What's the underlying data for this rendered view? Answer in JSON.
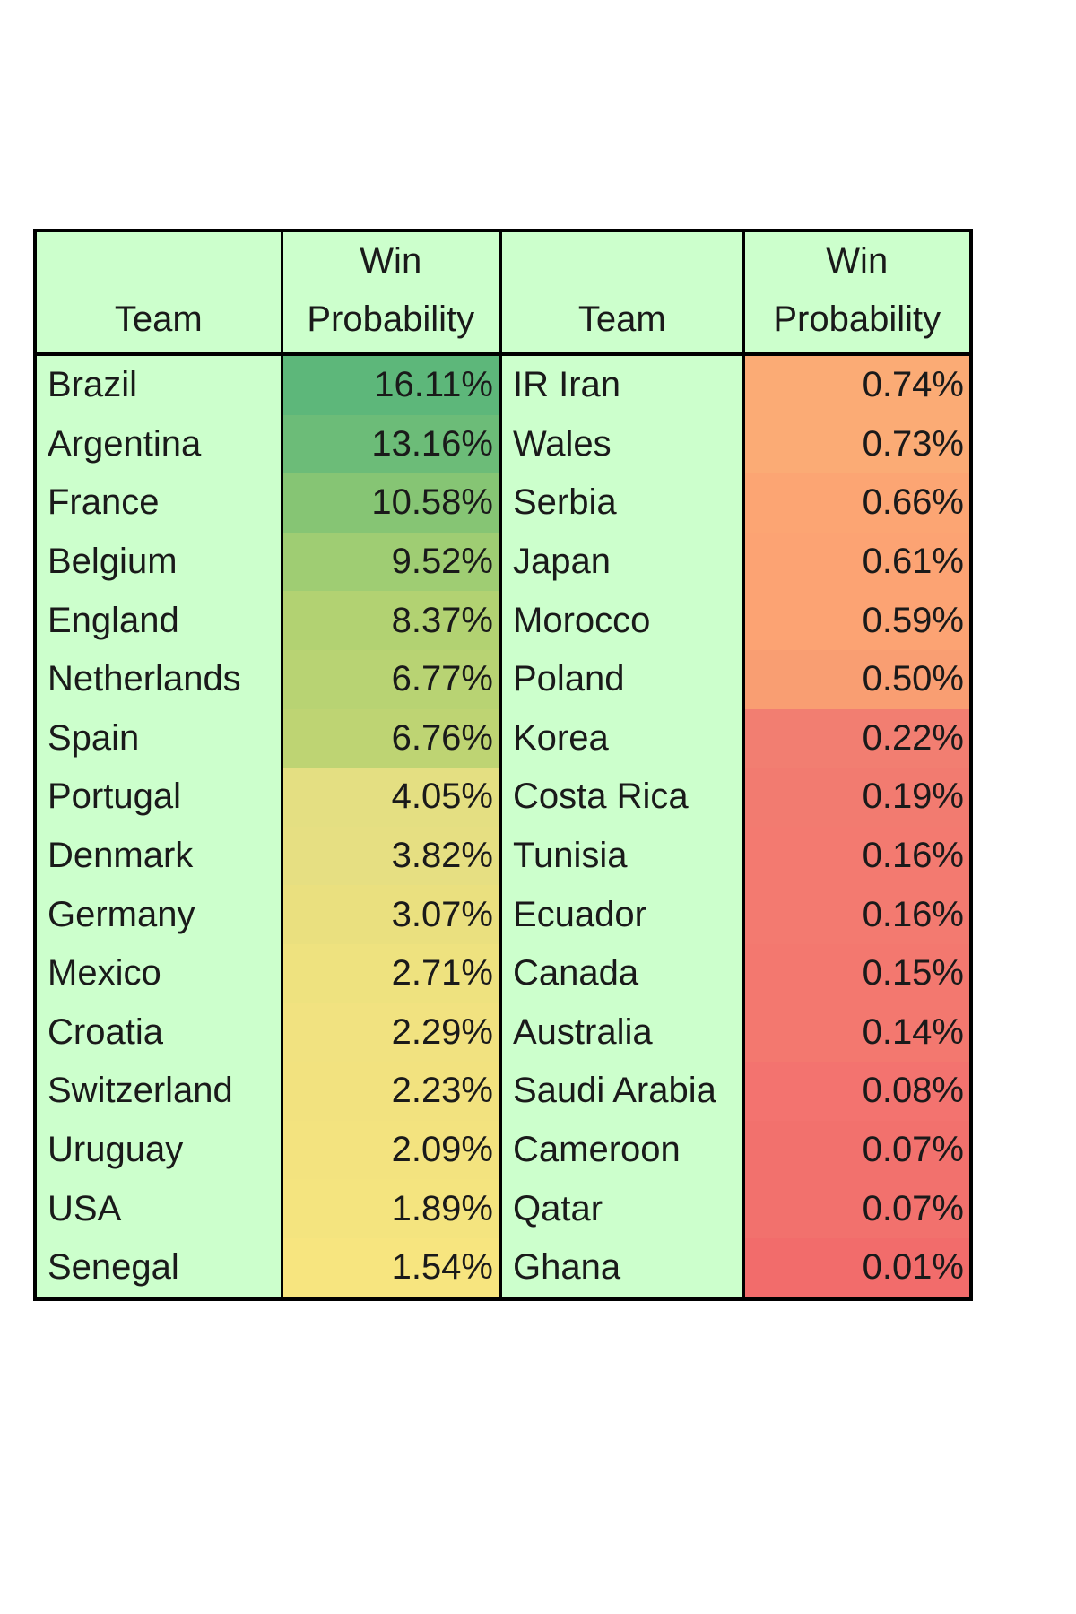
{
  "chart_data": {
    "type": "table",
    "columns": [
      "Team",
      "Win Probability",
      "Team",
      "Win Probability"
    ],
    "header": {
      "col1": "Team",
      "col2_line1": "Win",
      "col2_line2": "Probability",
      "col3": "Team",
      "col4_line1": "Win",
      "col4_line2": "Probability"
    },
    "rows": [
      {
        "team_a": "Brazil",
        "prob_a": "16.11%",
        "team_b": "IR Iran",
        "prob_b": "0.74%"
      },
      {
        "team_a": "Argentina",
        "prob_a": "13.16%",
        "team_b": "Wales",
        "prob_b": "0.73%"
      },
      {
        "team_a": "France",
        "prob_a": "10.58%",
        "team_b": "Serbia",
        "prob_b": "0.66%"
      },
      {
        "team_a": "Belgium",
        "prob_a": "9.52%",
        "team_b": "Japan",
        "prob_b": "0.61%"
      },
      {
        "team_a": "England",
        "prob_a": "8.37%",
        "team_b": "Morocco",
        "prob_b": "0.59%"
      },
      {
        "team_a": "Netherlands",
        "prob_a": "6.77%",
        "team_b": "Poland",
        "prob_b": "0.50%"
      },
      {
        "team_a": "Spain",
        "prob_a": "6.76%",
        "team_b": "Korea",
        "prob_b": "0.22%"
      },
      {
        "team_a": "Portugal",
        "prob_a": "4.05%",
        "team_b": "Costa Rica",
        "prob_b": "0.19%"
      },
      {
        "team_a": "Denmark",
        "prob_a": "3.82%",
        "team_b": "Tunisia",
        "prob_b": "0.16%"
      },
      {
        "team_a": "Germany",
        "prob_a": "3.07%",
        "team_b": "Ecuador",
        "prob_b": "0.16%"
      },
      {
        "team_a": "Mexico",
        "prob_a": "2.71%",
        "team_b": "Canada",
        "prob_b": "0.15%"
      },
      {
        "team_a": "Croatia",
        "prob_a": "2.29%",
        "team_b": "Australia",
        "prob_b": "0.14%"
      },
      {
        "team_a": "Switzerland",
        "prob_a": "2.23%",
        "team_b": "Saudi Arabia",
        "prob_b": "0.08%"
      },
      {
        "team_a": "Uruguay",
        "prob_a": "2.09%",
        "team_b": "Cameroon",
        "prob_b": "0.07%"
      },
      {
        "team_a": "USA",
        "prob_a": "1.89%",
        "team_b": "Qatar",
        "prob_b": "0.07%"
      },
      {
        "team_a": "Senegal",
        "prob_a": "1.54%",
        "team_b": "Ghana",
        "prob_b": "0.01%"
      }
    ],
    "colors": {
      "team_cell_bg": "#ccffcc",
      "left_prob_shading": [
        "#5db77a",
        "#6cbc78",
        "#86c574",
        "#9fcd73",
        "#b2d272",
        "#b8d373",
        "#bed473",
        "#e4df82",
        "#e6df82",
        "#eae07f",
        "#eee27f",
        "#f1e280",
        "#f2e27f",
        "#f3e37f",
        "#f4e47f",
        "#f7e57f"
      ],
      "right_prob_shading": [
        "#fbab75",
        "#fbab75",
        "#fca573",
        "#fca373",
        "#fca373",
        "#f99e72",
        "#f27e71",
        "#f27b70",
        "#f37a70",
        "#f37a70",
        "#f3786f",
        "#f3786f",
        "#f3736f",
        "#f2716d",
        "#f2716d",
        "#f26c6b"
      ]
    }
  }
}
